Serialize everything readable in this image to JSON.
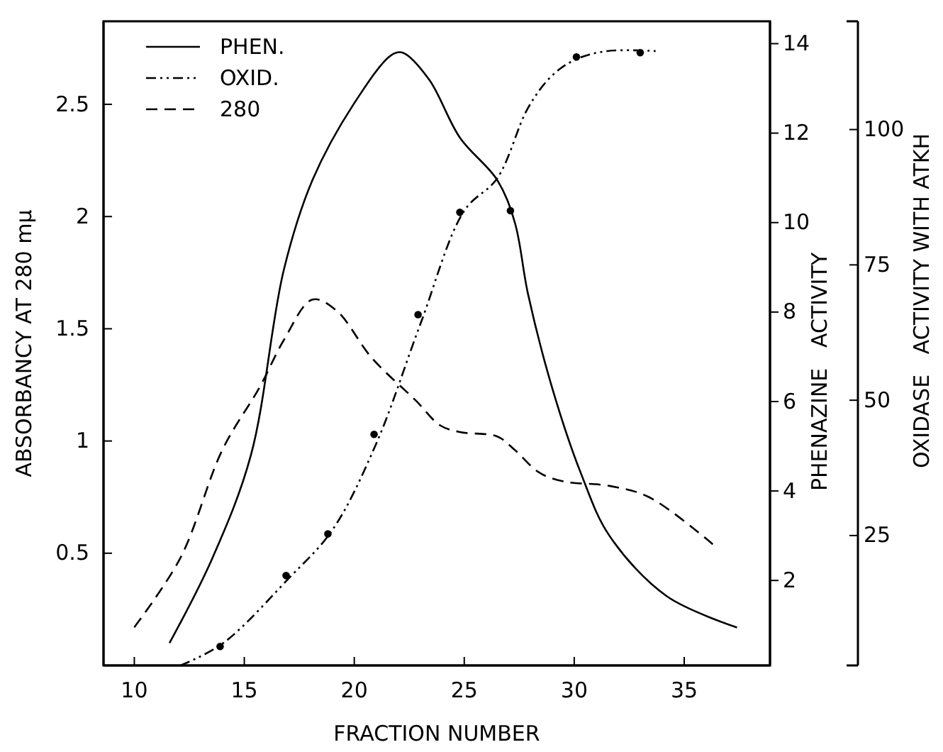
{
  "chart_data": {
    "type": "line",
    "xlabel": "FRACTION NUMBER",
    "ylabel": "ABSORBANCY AT 280 mμ",
    "y2label": "PHENAZINE   ACTIVITY",
    "y3label": "OXIDASE   ACTIVITY WITH ATKH",
    "xlim": [
      8.6,
      38.9
    ],
    "xticks": [
      10,
      15,
      20,
      25,
      30,
      35
    ],
    "ylim": [
      0,
      2.87
    ],
    "yticks": [
      0.5,
      1.0,
      1.5,
      2.0,
      2.5
    ],
    "y2lim": [
      0.1,
      14.5
    ],
    "y2ticks": [
      2,
      4,
      6,
      8,
      10,
      12,
      14
    ],
    "y3lim": [
      1,
      120
    ],
    "y3ticks": [
      25,
      50,
      75,
      100
    ],
    "legend": "top left",
    "series": [
      {
        "name": "PHEN.",
        "axis": "y2",
        "color": "#000000",
        "line_style": "solid",
        "x": [
          11.6,
          13.55,
          15.3,
          16.8,
          18.1,
          20,
          21.7,
          22.2,
          23.4,
          24.8,
          26.5,
          27.3,
          27.9,
          29.0,
          30.3,
          31.6,
          34.2,
          37.4
        ],
        "values": [
          0.6,
          2.5,
          4.8,
          8.95,
          10.95,
          12.67,
          13.75,
          13.8,
          13.2,
          11.9,
          10.95,
          10.0,
          8.4,
          6.3,
          4.4,
          3.0,
          1.65,
          0.95
        ]
      },
      {
        "name": "OXID.",
        "axis": "y3",
        "color": "#000000",
        "line_style": "dashdot",
        "x": [
          12.1,
          14,
          17,
          19,
          21,
          23,
          25,
          26.5,
          27.9,
          29,
          30.1,
          31.5,
          33.7
        ],
        "values": [
          1,
          5,
          17,
          26,
          42,
          64,
          85,
          91,
          104,
          110,
          113,
          114.5,
          114.5
        ]
      },
      {
        "name": "280",
        "axis": "y",
        "color": "#000000",
        "line_style": "dashed",
        "x": [
          10,
          12.1,
          14,
          15.7,
          16.8,
          18.1,
          19.2,
          20.8,
          22.8,
          23.9,
          24.8,
          26.5,
          27.3,
          28.4,
          29.5,
          31.6,
          33.4,
          36.3
        ],
        "values": [
          0.17,
          0.48,
          0.96,
          1.24,
          1.45,
          1.63,
          1.58,
          1.37,
          1.18,
          1.07,
          1.04,
          1.02,
          0.96,
          0.86,
          0.82,
          0.8,
          0.75,
          0.54
        ]
      },
      {
        "type": "scatter",
        "axis": "y3",
        "color": "#000000",
        "marker": "circle",
        "x": [
          13.9,
          16.9,
          18.8,
          20.9,
          22.9,
          24.8,
          27.1,
          30.1,
          33.0
        ],
        "values": [
          4.5,
          17.6,
          25.3,
          43.7,
          65.8,
          84.7,
          85,
          113.4,
          114.2
        ]
      }
    ]
  }
}
